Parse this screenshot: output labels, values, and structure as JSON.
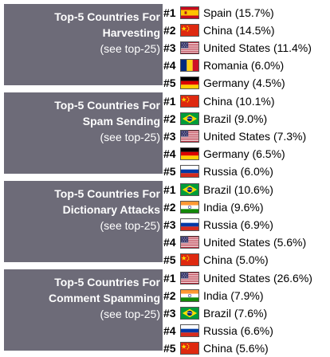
{
  "blocks": [
    {
      "title_line1": "Top-5 Countries For",
      "title_line2": "Harvesting",
      "link": "(see top-25)",
      "rows": [
        {
          "rank": "#1",
          "flag": "flag-spain",
          "text": "Spain (15.7%)"
        },
        {
          "rank": "#2",
          "flag": "flag-china",
          "text": "China (14.5%)"
        },
        {
          "rank": "#3",
          "flag": "flag-united-states",
          "text": "United States (11.4%)"
        },
        {
          "rank": "#4",
          "flag": "flag-romania",
          "text": "Romania (6.0%)"
        },
        {
          "rank": "#5",
          "flag": "flag-germany",
          "text": "Germany (4.5%)"
        }
      ]
    },
    {
      "title_line1": "Top-5 Countries For",
      "title_line2": "Spam Sending",
      "link": "(see top-25)",
      "rows": [
        {
          "rank": "#1",
          "flag": "flag-china",
          "text": "China (10.1%)"
        },
        {
          "rank": "#2",
          "flag": "flag-brazil",
          "text": "Brazil (9.0%)"
        },
        {
          "rank": "#3",
          "flag": "flag-united-states",
          "text": "United States (7.3%)"
        },
        {
          "rank": "#4",
          "flag": "flag-germany",
          "text": "Germany (6.5%)"
        },
        {
          "rank": "#5",
          "flag": "flag-russia",
          "text": "Russia (6.0%)"
        }
      ]
    },
    {
      "title_line1": "Top-5 Countries For",
      "title_line2": "Dictionary Attacks",
      "link": "(see top-25)",
      "rows": [
        {
          "rank": "#1",
          "flag": "flag-brazil",
          "text": "Brazil (10.6%)"
        },
        {
          "rank": "#2",
          "flag": "flag-india",
          "text": "India (9.6%)"
        },
        {
          "rank": "#3",
          "flag": "flag-russia",
          "text": "Russia (6.9%)"
        },
        {
          "rank": "#4",
          "flag": "flag-united-states",
          "text": "United States (5.6%)"
        },
        {
          "rank": "#5",
          "flag": "flag-china",
          "text": "China (5.0%)"
        }
      ]
    },
    {
      "title_line1": "Top-5 Countries For",
      "title_line2": "Comment Spamming",
      "link": "(see top-25)",
      "rows": [
        {
          "rank": "#1",
          "flag": "flag-united-states",
          "text": "United States (26.6%)"
        },
        {
          "rank": "#2",
          "flag": "flag-india",
          "text": "India (7.9%)"
        },
        {
          "rank": "#3",
          "flag": "flag-brazil",
          "text": "Brazil (7.6%)"
        },
        {
          "rank": "#4",
          "flag": "flag-russia",
          "text": "Russia (6.6%)"
        },
        {
          "rank": "#5",
          "flag": "flag-china",
          "text": "China (5.6%)"
        }
      ]
    }
  ],
  "colors": {
    "label_background": "#6d6b78",
    "label_text": "#ffffff"
  }
}
